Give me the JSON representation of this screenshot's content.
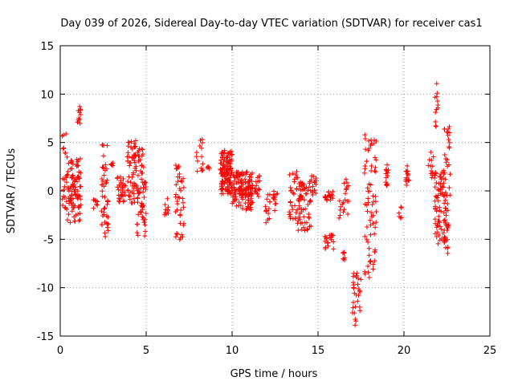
{
  "chart_data": {
    "type": "scatter",
    "title": "Day 039 of 2026, Sidereal Day-to-day VTEC variation (SDTVAR) for receiver cas1",
    "xlabel": "GPS time / hours",
    "ylabel": "SDTVAR / TECUs",
    "xlim": [
      0,
      25
    ],
    "ylim": [
      -15,
      15
    ],
    "xticks": [
      0,
      5,
      10,
      15,
      20,
      25
    ],
    "yticks": [
      -15,
      -10,
      -5,
      0,
      5,
      10,
      15
    ],
    "grid": true,
    "marker": "+",
    "color": "#ff0000",
    "clusters": [
      {
        "x": [
          0.1,
          0.4
        ],
        "y": [
          -2.2,
          6.0
        ],
        "n": 24
      },
      {
        "x": [
          0.4,
          1.2
        ],
        "y": [
          -3.3,
          3.4
        ],
        "n": 90
      },
      {
        "x": [
          1.0,
          1.2
        ],
        "y": [
          6.8,
          9.0
        ],
        "n": 12
      },
      {
        "x": [
          1.9,
          2.2
        ],
        "y": [
          -1.8,
          -0.6
        ],
        "n": 8
      },
      {
        "x": [
          2.4,
          2.8
        ],
        "y": [
          -4.8,
          4.8
        ],
        "n": 45
      },
      {
        "x": [
          2.9,
          3.1
        ],
        "y": [
          2.5,
          2.9
        ],
        "n": 5
      },
      {
        "x": [
          3.3,
          3.8
        ],
        "y": [
          -1.2,
          1.5
        ],
        "n": 30
      },
      {
        "x": [
          3.9,
          4.4
        ],
        "y": [
          -1.5,
          5.3
        ],
        "n": 50
      },
      {
        "x": [
          4.4,
          5.0
        ],
        "y": [
          -4.8,
          4.5
        ],
        "n": 70
      },
      {
        "x": [
          6.0,
          6.3
        ],
        "y": [
          -2.6,
          -0.8
        ],
        "n": 10
      },
      {
        "x": [
          6.7,
          7.2
        ],
        "y": [
          -5.1,
          3.5
        ],
        "n": 40
      },
      {
        "x": [
          7.9,
          8.3
        ],
        "y": [
          1.8,
          5.4
        ],
        "n": 14
      },
      {
        "x": [
          8.5,
          8.7
        ],
        "y": [
          2.2,
          2.7
        ],
        "n": 4
      },
      {
        "x": [
          9.3,
          10.0
        ],
        "y": [
          -0.5,
          4.2
        ],
        "n": 120
      },
      {
        "x": [
          10.0,
          11.2
        ],
        "y": [
          -2.0,
          2.0
        ],
        "n": 130
      },
      {
        "x": [
          11.3,
          11.6
        ],
        "y": [
          -0.8,
          1.9
        ],
        "n": 16
      },
      {
        "x": [
          11.9,
          12.2
        ],
        "y": [
          -3.3,
          0.2
        ],
        "n": 14
      },
      {
        "x": [
          12.4,
          12.7
        ],
        "y": [
          -2.5,
          0.0
        ],
        "n": 12
      },
      {
        "x": [
          13.3,
          13.8
        ],
        "y": [
          -3.0,
          2.0
        ],
        "n": 30
      },
      {
        "x": [
          13.8,
          14.6
        ],
        "y": [
          -4.2,
          1.0
        ],
        "n": 60
      },
      {
        "x": [
          14.6,
          14.9
        ],
        "y": [
          -0.5,
          1.7
        ],
        "n": 15
      },
      {
        "x": [
          15.4,
          15.9
        ],
        "y": [
          -1.0,
          0.0
        ],
        "n": 18
      },
      {
        "x": [
          15.4,
          15.9
        ],
        "y": [
          -6.0,
          -4.5
        ],
        "n": 18
      },
      {
        "x": [
          16.2,
          16.5
        ],
        "y": [
          -3.0,
          -1.0
        ],
        "n": 8
      },
      {
        "x": [
          16.4,
          16.6
        ],
        "y": [
          -7.2,
          -5.7
        ],
        "n": 7
      },
      {
        "x": [
          16.5,
          16.8
        ],
        "y": [
          -2.5,
          1.5
        ],
        "n": 14
      },
      {
        "x": [
          17.0,
          17.5
        ],
        "y": [
          -14.0,
          -8.5
        ],
        "n": 30
      },
      {
        "x": [
          17.7,
          18.4
        ],
        "y": [
          -9.0,
          5.8
        ],
        "n": 70
      },
      {
        "x": [
          18.9,
          19.1
        ],
        "y": [
          0.4,
          2.8
        ],
        "n": 14
      },
      {
        "x": [
          19.6,
          19.9
        ],
        "y": [
          -2.8,
          -1.2
        ],
        "n": 6
      },
      {
        "x": [
          20.1,
          20.3
        ],
        "y": [
          0.5,
          2.7
        ],
        "n": 14
      },
      {
        "x": [
          21.4,
          21.8
        ],
        "y": [
          1.0,
          4.0
        ],
        "n": 14
      },
      {
        "x": [
          21.8,
          22.0
        ],
        "y": [
          6.5,
          11.1
        ],
        "n": 12
      },
      {
        "x": [
          21.8,
          22.5
        ],
        "y": [
          -5.5,
          2.0
        ],
        "n": 80
      },
      {
        "x": [
          22.3,
          22.7
        ],
        "y": [
          -7.0,
          7.5
        ],
        "n": 40
      }
    ]
  }
}
